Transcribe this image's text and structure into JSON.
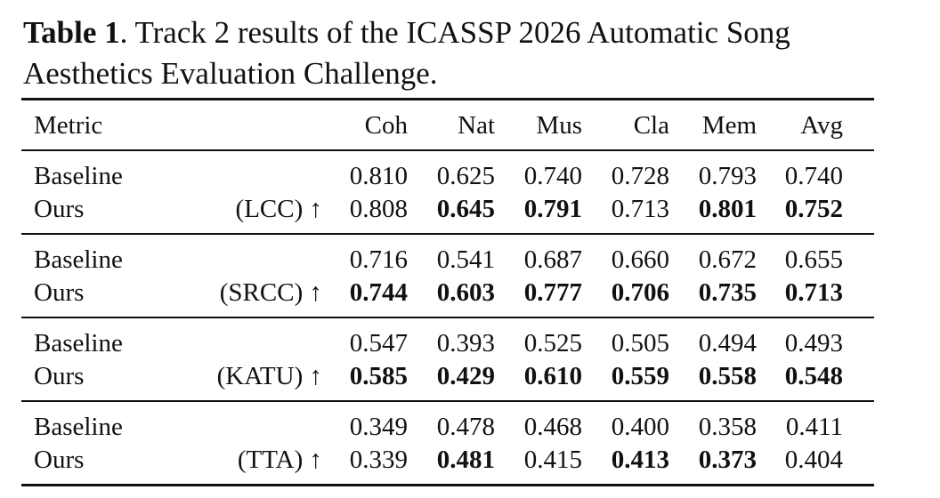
{
  "caption": {
    "label": "Table 1",
    "text": ". Track 2 results of the ICASSP 2026 Automatic Song Aesthetics Evaluation Challenge."
  },
  "table": {
    "header": {
      "metric": "Metric",
      "columns": [
        "Coh",
        "Nat",
        "Mus",
        "Cla",
        "Mem",
        "Avg"
      ]
    },
    "groups": [
      {
        "metric": "(LCC) ↑",
        "rows": [
          {
            "label": "Baseline",
            "values": [
              "0.810",
              "0.625",
              "0.740",
              "0.728",
              "0.793",
              "0.740"
            ],
            "bold": [
              false,
              false,
              false,
              false,
              false,
              false
            ]
          },
          {
            "label": "Ours",
            "values": [
              "0.808",
              "0.645",
              "0.791",
              "0.713",
              "0.801",
              "0.752"
            ],
            "bold": [
              false,
              true,
              true,
              false,
              true,
              true
            ]
          }
        ]
      },
      {
        "metric": "(SRCC) ↑",
        "rows": [
          {
            "label": "Baseline",
            "values": [
              "0.716",
              "0.541",
              "0.687",
              "0.660",
              "0.672",
              "0.655"
            ],
            "bold": [
              false,
              false,
              false,
              false,
              false,
              false
            ]
          },
          {
            "label": "Ours",
            "values": [
              "0.744",
              "0.603",
              "0.777",
              "0.706",
              "0.735",
              "0.713"
            ],
            "bold": [
              true,
              true,
              true,
              true,
              true,
              true
            ]
          }
        ]
      },
      {
        "metric": "(KATU) ↑",
        "rows": [
          {
            "label": "Baseline",
            "values": [
              "0.547",
              "0.393",
              "0.525",
              "0.505",
              "0.494",
              "0.493"
            ],
            "bold": [
              false,
              false,
              false,
              false,
              false,
              false
            ]
          },
          {
            "label": "Ours",
            "values": [
              "0.585",
              "0.429",
              "0.610",
              "0.559",
              "0.558",
              "0.548"
            ],
            "bold": [
              true,
              true,
              true,
              true,
              true,
              true
            ]
          }
        ]
      },
      {
        "metric": "(TTA) ↑",
        "rows": [
          {
            "label": "Baseline",
            "values": [
              "0.349",
              "0.478",
              "0.468",
              "0.400",
              "0.358",
              "0.411"
            ],
            "bold": [
              false,
              false,
              false,
              false,
              false,
              false
            ]
          },
          {
            "label": "Ours",
            "values": [
              "0.339",
              "0.481",
              "0.415",
              "0.413",
              "0.373",
              "0.404"
            ],
            "bold": [
              false,
              true,
              false,
              true,
              true,
              false
            ]
          }
        ]
      }
    ]
  }
}
